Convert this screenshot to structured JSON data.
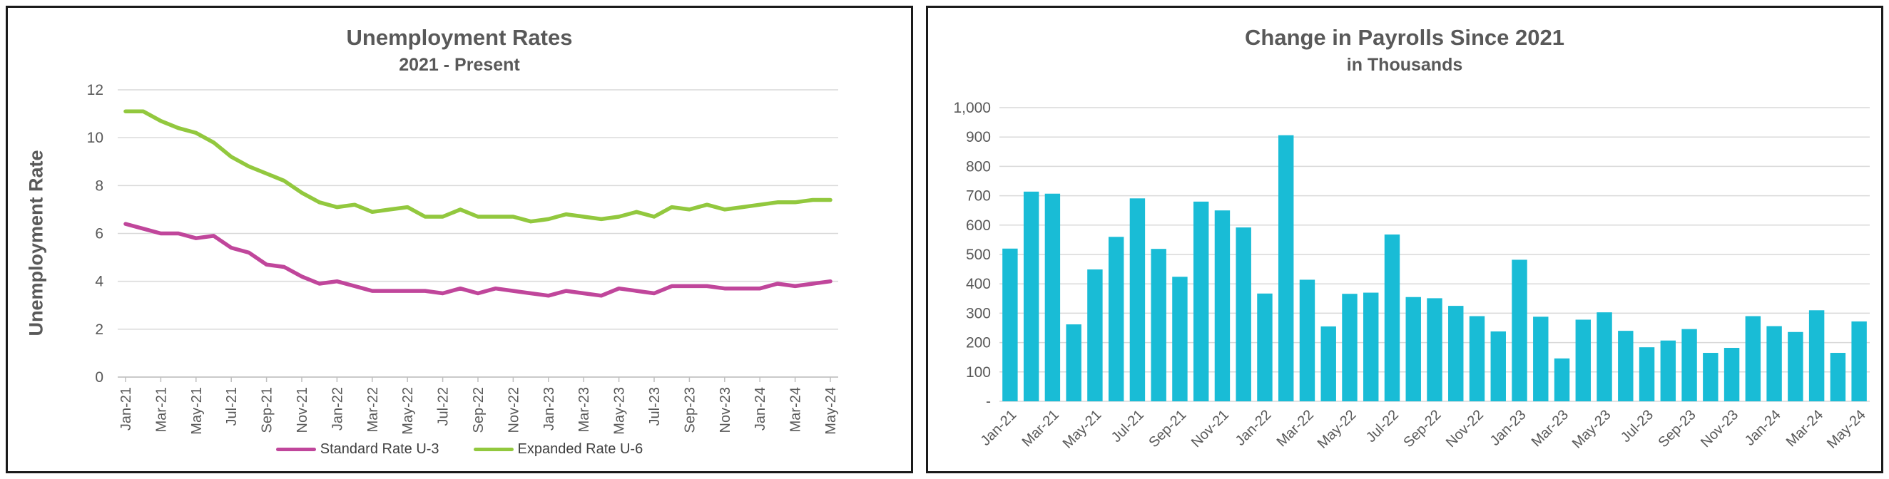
{
  "colors": {
    "u3": "#c0469b",
    "u6": "#92c83e",
    "bars": "#19bcd6",
    "grid": "#d9d9d9",
    "axis_text": "#595959"
  },
  "chart_data": [
    {
      "type": "line",
      "title": "Unemployment Rates",
      "subtitle": "2021 - Present",
      "ylabel": "Unemployment Rate",
      "xlabel": "",
      "ylim": [
        0,
        12
      ],
      "yticks": [
        "0",
        "2",
        "4",
        "6",
        "8",
        "10",
        "12"
      ],
      "grid": true,
      "legend_position": "bottom",
      "x": [
        "Jan-21",
        "Feb-21",
        "Mar-21",
        "Apr-21",
        "May-21",
        "Jun-21",
        "Jul-21",
        "Aug-21",
        "Sep-21",
        "Oct-21",
        "Nov-21",
        "Dec-21",
        "Jan-22",
        "Feb-22",
        "Mar-22",
        "Apr-22",
        "May-22",
        "Jun-22",
        "Jul-22",
        "Aug-22",
        "Sep-22",
        "Oct-22",
        "Nov-22",
        "Dec-22",
        "Jan-23",
        "Feb-23",
        "Mar-23",
        "Apr-23",
        "May-23",
        "Jun-23",
        "Jul-23",
        "Aug-23",
        "Sep-23",
        "Oct-23",
        "Nov-23",
        "Dec-23",
        "Jan-24",
        "Feb-24",
        "Mar-24",
        "Apr-24",
        "May-24"
      ],
      "xtick_labels": [
        "Jan-21",
        "Mar-21",
        "May-21",
        "Jul-21",
        "Sep-21",
        "Nov-21",
        "Jan-22",
        "Mar-22",
        "May-22",
        "Jul-22",
        "Sep-22",
        "Nov-22",
        "Jan-23",
        "Mar-23",
        "May-23",
        "Jul-23",
        "Sep-23",
        "Nov-23",
        "Jan-24",
        "Mar-24",
        "May-24"
      ],
      "series": [
        {
          "name": "Standard Rate U-3",
          "color": "#c0469b",
          "values": [
            6.4,
            6.2,
            6.0,
            6.0,
            5.8,
            5.9,
            5.4,
            5.2,
            4.7,
            4.6,
            4.2,
            3.9,
            4.0,
            3.8,
            3.6,
            3.6,
            3.6,
            3.6,
            3.5,
            3.7,
            3.5,
            3.7,
            3.6,
            3.5,
            3.4,
            3.6,
            3.5,
            3.4,
            3.7,
            3.6,
            3.5,
            3.8,
            3.8,
            3.8,
            3.7,
            3.7,
            3.7,
            3.9,
            3.8,
            3.9,
            4.0
          ]
        },
        {
          "name": "Expanded Rate U-6",
          "color": "#92c83e",
          "values": [
            11.1,
            11.1,
            10.7,
            10.4,
            10.2,
            9.8,
            9.2,
            8.8,
            8.5,
            8.2,
            7.7,
            7.3,
            7.1,
            7.2,
            6.9,
            7.0,
            7.1,
            6.7,
            6.7,
            7.0,
            6.7,
            6.7,
            6.7,
            6.5,
            6.6,
            6.8,
            6.7,
            6.6,
            6.7,
            6.9,
            6.7,
            7.1,
            7.0,
            7.2,
            7.0,
            7.1,
            7.2,
            7.3,
            7.3,
            7.4,
            7.4
          ]
        }
      ]
    },
    {
      "type": "bar",
      "title": "Change in Payrolls Since 2021",
      "subtitle": "in Thousands",
      "xlabel": "",
      "ylabel": "",
      "ylim": [
        0,
        1000
      ],
      "yticks": [
        "-",
        "100",
        "200",
        "300",
        "400",
        "500",
        "600",
        "700",
        "800",
        "900",
        "1,000"
      ],
      "grid": true,
      "categories": [
        "Jan-21",
        "Feb-21",
        "Mar-21",
        "Apr-21",
        "May-21",
        "Jun-21",
        "Jul-21",
        "Aug-21",
        "Sep-21",
        "Oct-21",
        "Nov-21",
        "Dec-21",
        "Jan-22",
        "Feb-22",
        "Mar-22",
        "Apr-22",
        "May-22",
        "Jun-22",
        "Jul-22",
        "Aug-22",
        "Sep-22",
        "Oct-22",
        "Nov-22",
        "Dec-22",
        "Jan-23",
        "Feb-23",
        "Mar-23",
        "Apr-23",
        "May-23",
        "Jun-23",
        "Jul-23",
        "Aug-23",
        "Sep-23",
        "Oct-23",
        "Nov-23",
        "Dec-23",
        "Jan-24",
        "Feb-24",
        "Mar-24",
        "Apr-24",
        "May-24"
      ],
      "xtick_labels": [
        "Jan-21",
        "Mar-21",
        "May-21",
        "Jul-21",
        "Sep-21",
        "Nov-21",
        "Jan-22",
        "Mar-22",
        "May-22",
        "Jul-22",
        "Sep-22",
        "Nov-22",
        "Jan-23",
        "Mar-23",
        "May-23",
        "Jul-23",
        "Sep-23",
        "Nov-23",
        "Jan-24",
        "Mar-24",
        "May-24"
      ],
      "values": [
        520,
        714,
        707,
        262,
        449,
        560,
        691,
        519,
        424,
        680,
        650,
        592,
        367,
        906,
        414,
        255,
        366,
        370,
        568,
        355,
        351,
        325,
        290,
        238,
        482,
        288,
        146,
        278,
        303,
        240,
        184,
        207,
        246,
        165,
        182,
        290,
        256,
        236,
        310,
        165,
        272
      ]
    }
  ]
}
